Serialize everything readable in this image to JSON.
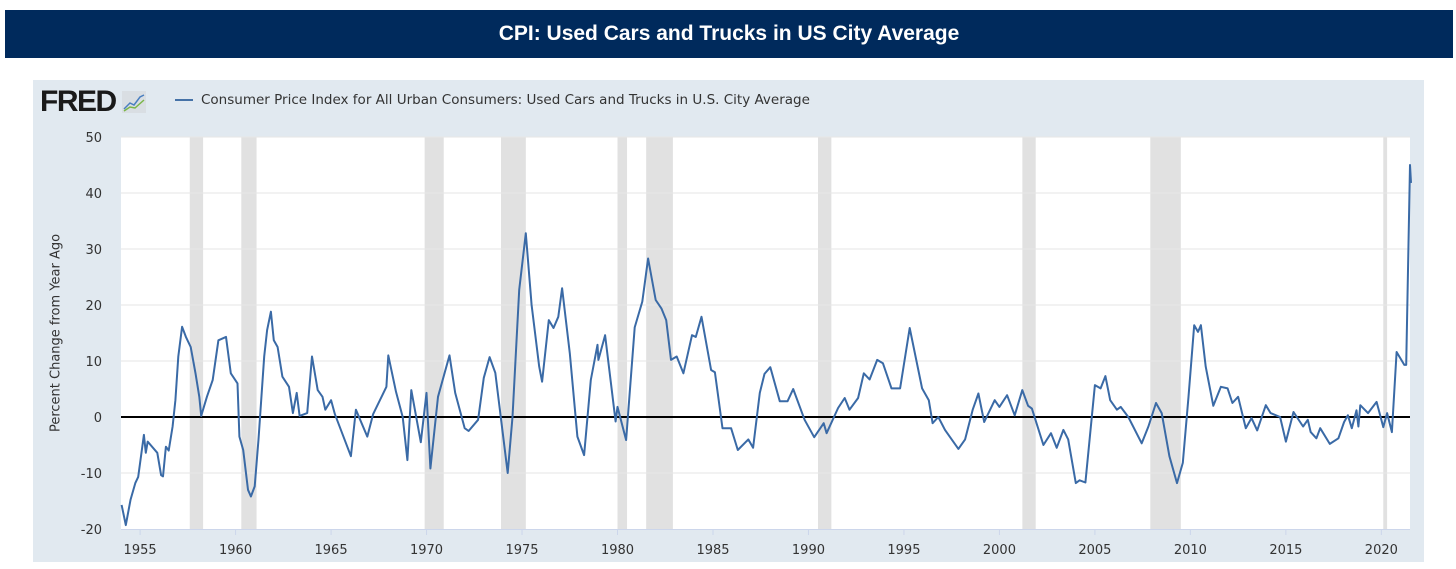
{
  "header": {
    "title": "CPI: Used Cars and Trucks in US City Average"
  },
  "logo": {
    "text": "FRED"
  },
  "colors": {
    "series": "#3a6aa6",
    "title_bar": "#002a5c",
    "panel": "#e1e9f0",
    "recession": "#e1e1e1",
    "zero_line": "#000000"
  },
  "chart_data": {
    "type": "line",
    "title": "CPI: Used Cars and Trucks in US City Average",
    "legend": [
      "Consumer Price Index for All Urban Consumers: Used Cars and Trucks in U.S. City Average"
    ],
    "legend_position": "top-left",
    "xlabel": "",
    "ylabel": "Percent Change from Year Ago",
    "xlim": [
      1954.0,
      2021.5
    ],
    "ylim": [
      -20,
      50
    ],
    "xticks": [
      1955,
      1960,
      1965,
      1970,
      1975,
      1980,
      1985,
      1990,
      1995,
      2000,
      2005,
      2010,
      2015,
      2020
    ],
    "yticks": [
      -20,
      -10,
      0,
      10,
      20,
      30,
      40,
      50
    ],
    "grid": true,
    "recessions": [
      [
        1957.6,
        1958.3
      ],
      [
        1960.3,
        1961.1
      ],
      [
        1969.9,
        1970.9
      ],
      [
        1973.9,
        1975.2
      ],
      [
        1980.0,
        1980.5
      ],
      [
        1981.5,
        1982.9
      ],
      [
        1990.5,
        1991.2
      ],
      [
        2001.2,
        2001.9
      ],
      [
        2007.9,
        2009.5
      ],
      [
        2020.1,
        2020.3
      ]
    ],
    "series": [
      {
        "name": "Consumer Price Index for All Urban Consumers: Used Cars and Trucks in U.S. City Average",
        "points": [
          [
            1954.03,
            -15.7
          ],
          [
            1954.25,
            -19.3
          ],
          [
            1954.5,
            -14.8
          ],
          [
            1954.75,
            -11.8
          ],
          [
            1954.9,
            -10.7
          ],
          [
            1955.2,
            -3.2
          ],
          [
            1955.3,
            -6.4
          ],
          [
            1955.4,
            -4.4
          ],
          [
            1955.9,
            -6.4
          ],
          [
            1956.1,
            -10.4
          ],
          [
            1956.2,
            -10.6
          ],
          [
            1956.35,
            -5.3
          ],
          [
            1956.5,
            -6
          ],
          [
            1956.7,
            -1.7
          ],
          [
            1956.85,
            3
          ],
          [
            1957.0,
            10.8
          ],
          [
            1957.2,
            16.1
          ],
          [
            1957.4,
            14.3
          ],
          [
            1957.65,
            12.5
          ],
          [
            1957.9,
            7.8
          ],
          [
            1958.1,
            3.6
          ],
          [
            1958.2,
            0.2
          ],
          [
            1958.5,
            3.6
          ],
          [
            1958.8,
            6.6
          ],
          [
            1959.1,
            13.7
          ],
          [
            1959.5,
            14.3
          ],
          [
            1959.75,
            7.8
          ],
          [
            1960.1,
            6
          ],
          [
            1960.2,
            -3.5
          ],
          [
            1960.4,
            -5.9
          ],
          [
            1960.65,
            -13
          ],
          [
            1960.8,
            -14.2
          ],
          [
            1961.0,
            -12.4
          ],
          [
            1961.2,
            -4
          ],
          [
            1961.5,
            10.8
          ],
          [
            1961.65,
            15.5
          ],
          [
            1961.85,
            18.8
          ],
          [
            1962.0,
            13.7
          ],
          [
            1962.2,
            12.5
          ],
          [
            1962.45,
            7.2
          ],
          [
            1962.8,
            5.4
          ],
          [
            1963.0,
            0.7
          ],
          [
            1963.2,
            4.3
          ],
          [
            1963.35,
            0.2
          ],
          [
            1963.75,
            0.7
          ],
          [
            1964.0,
            10.8
          ],
          [
            1964.3,
            4.8
          ],
          [
            1964.55,
            3.6
          ],
          [
            1964.7,
            1.3
          ],
          [
            1965.0,
            3
          ],
          [
            1965.2,
            0.5
          ],
          [
            1966.04,
            -7
          ],
          [
            1966.3,
            1.3
          ],
          [
            1966.9,
            -3.5
          ],
          [
            1967.2,
            0.5
          ],
          [
            1967.9,
            5.4
          ],
          [
            1968.0,
            11
          ],
          [
            1968.4,
            4.5
          ],
          [
            1968.75,
            0
          ],
          [
            1969.0,
            -7.7
          ],
          [
            1969.2,
            4.8
          ],
          [
            1969.7,
            -4.5
          ],
          [
            1970.0,
            4.3
          ],
          [
            1970.2,
            -9.2
          ],
          [
            1970.6,
            3.6
          ],
          [
            1971.2,
            11
          ],
          [
            1971.5,
            4.3
          ],
          [
            1972.0,
            -2
          ],
          [
            1972.2,
            -2.5
          ],
          [
            1972.7,
            -0.5
          ],
          [
            1973.0,
            7
          ],
          [
            1973.3,
            10.7
          ],
          [
            1973.6,
            7.9
          ],
          [
            1974.25,
            -10
          ],
          [
            1974.5,
            0
          ],
          [
            1974.85,
            22.7
          ],
          [
            1975.2,
            32.8
          ],
          [
            1975.5,
            20
          ],
          [
            1975.9,
            9
          ],
          [
            1976.05,
            6.3
          ],
          [
            1976.4,
            17.3
          ],
          [
            1976.65,
            15.9
          ],
          [
            1976.9,
            17.9
          ],
          [
            1977.1,
            23
          ],
          [
            1977.5,
            11.4
          ],
          [
            1977.9,
            -3.5
          ],
          [
            1978.25,
            -6.8
          ],
          [
            1978.6,
            6.6
          ],
          [
            1978.95,
            12.9
          ],
          [
            1979.0,
            10.2
          ],
          [
            1979.35,
            14.6
          ],
          [
            1979.9,
            -0.8
          ],
          [
            1980.0,
            1.8
          ],
          [
            1980.45,
            -4.1
          ],
          [
            1980.9,
            16
          ],
          [
            1981.3,
            20.6
          ],
          [
            1981.6,
            28.3
          ],
          [
            1982.0,
            20.9
          ],
          [
            1982.3,
            19.4
          ],
          [
            1982.55,
            17.3
          ],
          [
            1982.8,
            10.2
          ],
          [
            1983.1,
            10.8
          ],
          [
            1983.45,
            7.8
          ],
          [
            1983.9,
            14.6
          ],
          [
            1984.1,
            14.3
          ],
          [
            1984.4,
            17.9
          ],
          [
            1984.9,
            8.4
          ],
          [
            1985.1,
            8
          ],
          [
            1985.5,
            -2
          ],
          [
            1985.95,
            -2
          ],
          [
            1986.3,
            -5.9
          ],
          [
            1986.85,
            -4
          ],
          [
            1987.1,
            -5.5
          ],
          [
            1987.45,
            4.3
          ],
          [
            1987.7,
            7.7
          ],
          [
            1988.0,
            8.9
          ],
          [
            1988.5,
            2.8
          ],
          [
            1988.9,
            2.8
          ],
          [
            1989.2,
            5
          ],
          [
            1989.8,
            -0.5
          ],
          [
            1990.3,
            -3.6
          ],
          [
            1990.8,
            -1.1
          ],
          [
            1990.95,
            -2.9
          ],
          [
            1991.55,
            1.6
          ],
          [
            1991.9,
            3.4
          ],
          [
            1992.15,
            1.3
          ],
          [
            1992.6,
            3.4
          ],
          [
            1992.9,
            7.8
          ],
          [
            1993.2,
            6.7
          ],
          [
            1993.6,
            10.2
          ],
          [
            1993.9,
            9.6
          ],
          [
            1994.35,
            5.1
          ],
          [
            1994.8,
            5.1
          ],
          [
            1995.3,
            15.9
          ],
          [
            1995.95,
            5.1
          ],
          [
            1996.3,
            3
          ],
          [
            1996.5,
            -1.1
          ],
          [
            1996.8,
            0
          ],
          [
            1997.15,
            -2.3
          ],
          [
            1997.85,
            -5.7
          ],
          [
            1998.2,
            -4
          ],
          [
            1998.6,
            1.3
          ],
          [
            1998.9,
            4.2
          ],
          [
            1999.2,
            -0.9
          ],
          [
            1999.75,
            3
          ],
          [
            2000.0,
            1.8
          ],
          [
            2000.4,
            3.9
          ],
          [
            2000.8,
            0.3
          ],
          [
            2001.2,
            4.8
          ],
          [
            2001.5,
            2
          ],
          [
            2001.7,
            1.5
          ],
          [
            2002.3,
            -5
          ],
          [
            2002.7,
            -2.9
          ],
          [
            2003.0,
            -5.5
          ],
          [
            2003.35,
            -2.3
          ],
          [
            2003.6,
            -4
          ],
          [
            2004.0,
            -11.8
          ],
          [
            2004.2,
            -11.3
          ],
          [
            2004.5,
            -11.7
          ],
          [
            2005.0,
            5.7
          ],
          [
            2005.3,
            5.1
          ],
          [
            2005.55,
            7.3
          ],
          [
            2005.8,
            3
          ],
          [
            2006.15,
            1.3
          ],
          [
            2006.35,
            1.8
          ],
          [
            2006.75,
            0
          ],
          [
            2007.45,
            -4.7
          ],
          [
            2007.8,
            -1.7
          ],
          [
            2008.2,
            2.5
          ],
          [
            2008.5,
            0.7
          ],
          [
            2008.9,
            -7
          ],
          [
            2009.3,
            -11.8
          ],
          [
            2009.6,
            -8.2
          ],
          [
            2009.9,
            3.6
          ],
          [
            2010.2,
            16.4
          ],
          [
            2010.4,
            15.2
          ],
          [
            2010.55,
            16.4
          ],
          [
            2010.8,
            9
          ],
          [
            2011.2,
            2
          ],
          [
            2011.6,
            5.4
          ],
          [
            2011.95,
            5.1
          ],
          [
            2012.2,
            2.5
          ],
          [
            2012.5,
            3.6
          ],
          [
            2012.9,
            -2
          ],
          [
            2013.2,
            -0.2
          ],
          [
            2013.5,
            -2.4
          ],
          [
            2013.95,
            2.1
          ],
          [
            2014.2,
            0.7
          ],
          [
            2014.7,
            0
          ],
          [
            2015.0,
            -4.4
          ],
          [
            2015.4,
            0.9
          ],
          [
            2015.9,
            -1.7
          ],
          [
            2016.15,
            -0.5
          ],
          [
            2016.3,
            -2.7
          ],
          [
            2016.6,
            -3.8
          ],
          [
            2016.8,
            -2
          ],
          [
            2017.3,
            -4.8
          ],
          [
            2017.75,
            -3.8
          ],
          [
            2018.05,
            -0.9
          ],
          [
            2018.25,
            0.3
          ],
          [
            2018.45,
            -2
          ],
          [
            2018.7,
            1.2
          ],
          [
            2018.8,
            -1.7
          ],
          [
            2018.9,
            2.1
          ],
          [
            2019.3,
            0.7
          ],
          [
            2019.75,
            2.7
          ],
          [
            2020.1,
            -1.8
          ],
          [
            2020.3,
            0.7
          ],
          [
            2020.55,
            -2.7
          ],
          [
            2020.8,
            11.6
          ],
          [
            2021.2,
            9.3
          ],
          [
            2021.3,
            9.3
          ],
          [
            2021.5,
            45
          ],
          [
            2021.55,
            41.8
          ]
        ]
      }
    ]
  }
}
